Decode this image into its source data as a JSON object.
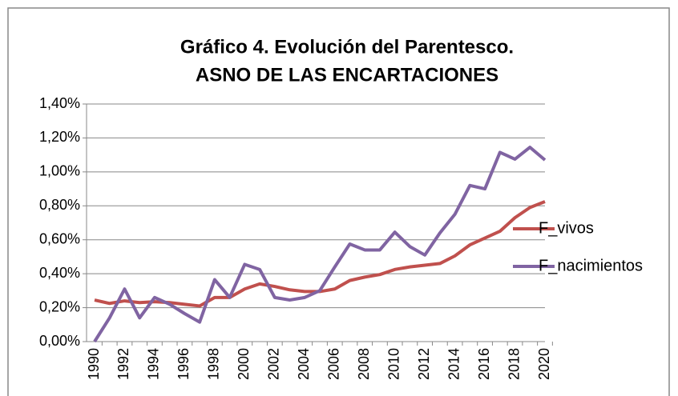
{
  "chart_data": {
    "type": "line",
    "title": [
      "Gráfico 4.  Evolución del Parentesco.",
      "ASNO DE LAS ENCARTACIONES"
    ],
    "categories": [
      "1990",
      null,
      "1992",
      null,
      "1994",
      null,
      "1996",
      null,
      "1998",
      null,
      "2000",
      null,
      "2002",
      null,
      "2004",
      null,
      "2006",
      null,
      "2008",
      null,
      "2010",
      null,
      "2012",
      null,
      "2014",
      null,
      "2016",
      null,
      "2018",
      null,
      "2020"
    ],
    "series": [
      {
        "name": "F_vivos",
        "color": "#c0504d",
        "values": [
          0.245,
          0.225,
          0.24,
          0.23,
          0.235,
          0.23,
          0.22,
          0.21,
          0.26,
          0.26,
          0.31,
          0.34,
          0.325,
          0.305,
          0.295,
          0.295,
          0.31,
          0.36,
          0.38,
          0.395,
          0.425,
          0.44,
          0.45,
          0.46,
          0.505,
          0.57,
          0.61,
          0.65,
          0.73,
          0.79,
          0.825
        ]
      },
      {
        "name": "F_nacimientos",
        "color": "#8064a2",
        "values": [
          0.0,
          0.14,
          0.31,
          0.14,
          0.26,
          0.22,
          0.165,
          0.115,
          0.365,
          0.26,
          0.455,
          0.425,
          0.26,
          0.245,
          0.26,
          0.3,
          0.44,
          0.575,
          0.54,
          0.54,
          0.645,
          0.56,
          0.51,
          0.64,
          0.75,
          0.92,
          0.9,
          1.115,
          1.075,
          1.145,
          1.07
        ]
      }
    ],
    "ylim": [
      0,
      1.4
    ],
    "yticks": [
      {
        "value": 0,
        "label": "0,00%"
      },
      {
        "value": 0.2,
        "label": "0,20%"
      },
      {
        "value": 0.4,
        "label": "0,40%"
      },
      {
        "value": 0.6,
        "label": "0,60%"
      },
      {
        "value": 0.8,
        "label": "0,80%"
      },
      {
        "value": 1.0,
        "label": "1,00%"
      },
      {
        "value": 1.2,
        "label": "1,20%"
      },
      {
        "value": 1.4,
        "label": "1,40%"
      }
    ],
    "grid": true,
    "legend": "right"
  }
}
